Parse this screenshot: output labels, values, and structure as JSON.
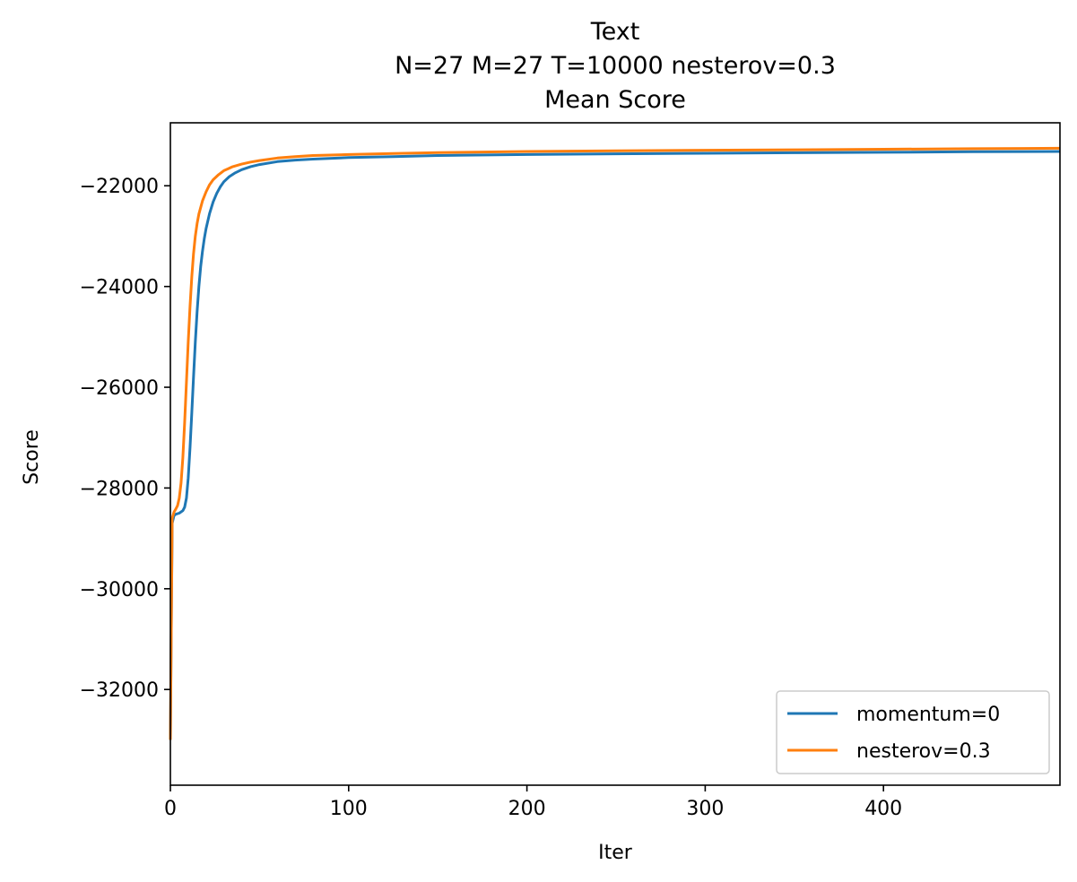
{
  "chart_data": {
    "type": "line",
    "title_lines": [
      "Text",
      "N=27 M=27 T=10000 nesterov=0.3",
      "Mean Score"
    ],
    "xlabel": "Iter",
    "ylabel": "Score",
    "xlim": [
      0,
      499
    ],
    "ylim": [
      -33900,
      -20750
    ],
    "xticks": [
      0,
      100,
      200,
      300,
      400
    ],
    "xtick_labels": [
      "0",
      "100",
      "200",
      "300",
      "400"
    ],
    "yticks": [
      -32000,
      -30000,
      -28000,
      -26000,
      -24000,
      -22000
    ],
    "ytick_labels": [
      "−32000",
      "−30000",
      "−28000",
      "−26000",
      "−24000",
      "−22000"
    ],
    "grid": false,
    "legend_position": "lower-right",
    "series": [
      {
        "name": "momentum=0",
        "color": "#1f77b4",
        "x": [
          0,
          1,
          2,
          3,
          5,
          7,
          8,
          9,
          10,
          11,
          12,
          13,
          14,
          15,
          16,
          17,
          18,
          19,
          20,
          22,
          24,
          26,
          28,
          30,
          33,
          36,
          40,
          45,
          50,
          60,
          70,
          80,
          100,
          125,
          150,
          200,
          250,
          300,
          350,
          400,
          450,
          499
        ],
        "y": [
          -33000,
          -28700,
          -28550,
          -28520,
          -28500,
          -28450,
          -28380,
          -28200,
          -27800,
          -27200,
          -26500,
          -25800,
          -25100,
          -24500,
          -24000,
          -23600,
          -23300,
          -23050,
          -22850,
          -22550,
          -22320,
          -22150,
          -22020,
          -21920,
          -21820,
          -21750,
          -21680,
          -21620,
          -21580,
          -21520,
          -21490,
          -21470,
          -21440,
          -21420,
          -21400,
          -21380,
          -21365,
          -21355,
          -21345,
          -21335,
          -21325,
          -21320
        ]
      },
      {
        "name": "nesterov=0.3",
        "color": "#ff7f0e",
        "x": [
          0,
          1,
          2,
          3,
          4,
          5,
          6,
          7,
          8,
          9,
          10,
          11,
          12,
          13,
          14,
          15,
          16,
          18,
          20,
          22,
          24,
          27,
          30,
          35,
          40,
          45,
          50,
          60,
          70,
          80,
          100,
          125,
          150,
          200,
          250,
          300,
          350,
          400,
          450,
          499
        ],
        "y": [
          -33000,
          -28600,
          -28480,
          -28420,
          -28350,
          -28200,
          -27900,
          -27400,
          -26700,
          -25900,
          -25100,
          -24400,
          -23800,
          -23350,
          -23000,
          -22750,
          -22560,
          -22300,
          -22120,
          -21980,
          -21880,
          -21780,
          -21700,
          -21620,
          -21570,
          -21530,
          -21500,
          -21450,
          -21420,
          -21400,
          -21380,
          -21360,
          -21340,
          -21320,
          -21305,
          -21295,
          -21285,
          -21275,
          -21265,
          -21255
        ]
      }
    ]
  }
}
